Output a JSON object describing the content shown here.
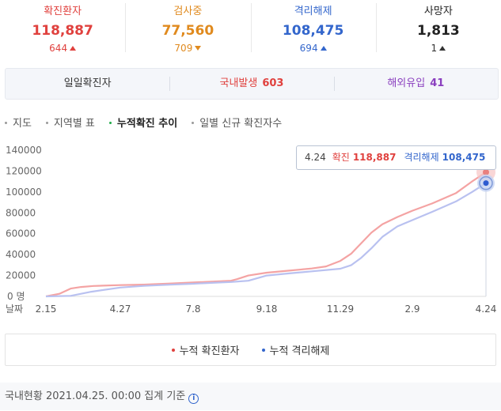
{
  "summary": [
    {
      "label": "확진환자",
      "value": "118,887",
      "delta": "644",
      "dir": "up",
      "label_color": "#e0413e",
      "value_color": "#e0413e",
      "delta_color": "#e0413e"
    },
    {
      "label": "검사중",
      "value": "77,560",
      "delta": "709",
      "dir": "down",
      "label_color": "#e08a1e",
      "value_color": "#e08a1e",
      "delta_color": "#e08a1e"
    },
    {
      "label": "격리해제",
      "value": "108,475",
      "delta": "694",
      "dir": "up",
      "label_color": "#3366cc",
      "value_color": "#3366cc",
      "delta_color": "#3366cc"
    },
    {
      "label": "사망자",
      "value": "1,813",
      "delta": "1",
      "dir": "up",
      "label_color": "#222222",
      "value_color": "#222222",
      "delta_color": "#333333"
    }
  ],
  "daily": {
    "label": "일일확진자",
    "domestic_label": "국내발생",
    "domestic_value": "603",
    "overseas_label": "해외유입",
    "overseas_value": "41"
  },
  "tabs": [
    {
      "label": "지도",
      "active": false
    },
    {
      "label": "지역별 표",
      "active": false
    },
    {
      "label": "누적확진 추이",
      "active": true
    },
    {
      "label": "일별 신규 확진자수",
      "active": false
    }
  ],
  "chart_data": {
    "type": "line",
    "x_ticks": [
      "2.15",
      "4.27",
      "7.8",
      "9.18",
      "11.29",
      "2.9",
      "4.24"
    ],
    "x_axis_label": "날짜",
    "y_ticks": [
      "0 명",
      "20000",
      "40000",
      "60000",
      "80000",
      "100000",
      "120000",
      "140000"
    ],
    "ylim": [
      0,
      140000
    ],
    "series": [
      {
        "name": "누적 확진환자",
        "color": "#f4a3a3",
        "x": [
          "2.15",
          "2.28",
          "3.10",
          "3.20",
          "4.01",
          "4.27",
          "5.20",
          "6.15",
          "7.08",
          "7.30",
          "8.14",
          "8.20",
          "8.31",
          "9.18",
          "10.10",
          "11.01",
          "11.15",
          "11.29",
          "12.10",
          "12.20",
          "12.30",
          "1.10",
          "1.25",
          "2.09",
          "3.01",
          "3.25",
          "4.10",
          "4.24"
        ],
        "values": [
          0,
          2500,
          7500,
          9000,
          10000,
          10800,
          11300,
          12300,
          13300,
          14300,
          15000,
          16500,
          20000,
          22700,
          24700,
          26700,
          28700,
          34000,
          41000,
          51000,
          61000,
          69000,
          76000,
          82000,
          89000,
          99000,
          110000,
          118887
        ]
      },
      {
        "name": "누적 격리해제",
        "color": "#b9c1f0",
        "x": [
          "2.15",
          "3.10",
          "3.30",
          "4.27",
          "5.20",
          "6.15",
          "7.08",
          "7.30",
          "8.14",
          "8.31",
          "9.18",
          "10.10",
          "11.01",
          "11.29",
          "12.10",
          "12.20",
          "12.30",
          "1.10",
          "1.25",
          "2.09",
          "3.01",
          "3.25",
          "4.10",
          "4.24"
        ],
        "values": [
          0,
          500,
          4500,
          8500,
          10100,
          11200,
          12100,
          13200,
          13800,
          15000,
          20000,
          22000,
          24000,
          26500,
          30000,
          37000,
          46000,
          57000,
          67000,
          73000,
          81000,
          91000,
          100000,
          108475
        ]
      }
    ],
    "highlight": {
      "date": "4.24",
      "confirmed": "118,887",
      "released": "108,475"
    }
  },
  "tooltip": {
    "date": "4.24",
    "confirmed_label": "확진",
    "confirmed_value": "118,887",
    "released_label": "격리해제",
    "released_value": "108,475"
  },
  "legend": [
    {
      "label": "누적 확진환자",
      "color": "#e0413e"
    },
    {
      "label": "누적 격리해제",
      "color": "#3366cc"
    }
  ],
  "footer": {
    "text": "국내현황 2021.04.25. 00:00 집계 기준"
  }
}
